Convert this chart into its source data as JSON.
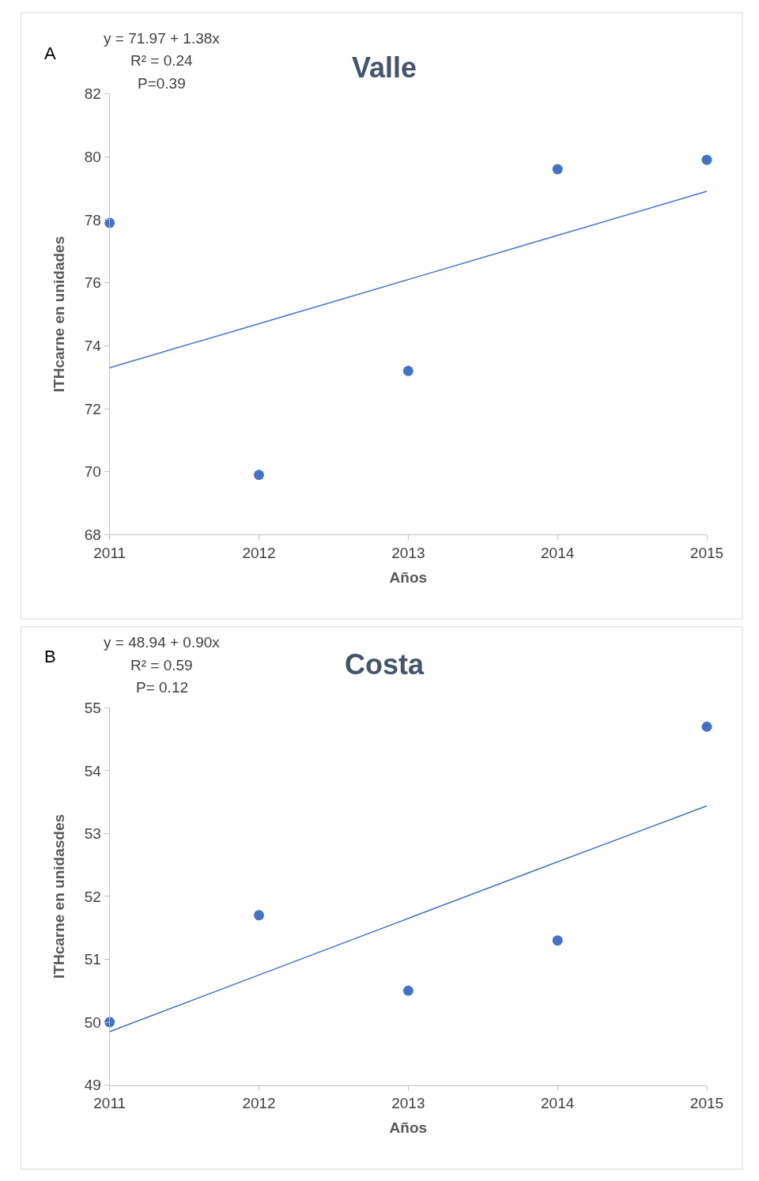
{
  "chart_data": [
    {
      "type": "scatter",
      "title": "Valle",
      "xlabel": "Años",
      "ylabel": "ITHcarne en unidades",
      "annotations": [
        "A",
        "y = 71.97 + 1.38x",
        "R² = 0.24",
        "P=0.39"
      ],
      "x": [
        2011,
        2012,
        2013,
        2014,
        2015
      ],
      "series": [
        {
          "color": "#4472c4",
          "marker": "circle",
          "values": [
            77.9,
            69.9,
            73.2,
            79.6,
            79.9
          ]
        },
        {
          "type": "line",
          "color": "#4472c4",
          "marker": "none",
          "values": [
            73.3,
            74.7,
            76.1,
            77.5,
            78.9
          ]
        }
      ],
      "xlim": [
        2011,
        2015
      ],
      "xticks": [
        2011,
        2012,
        2013,
        2014,
        2015
      ],
      "ylim": [
        68,
        82
      ],
      "yticks": [
        68,
        70,
        72,
        74,
        76,
        78,
        80,
        82
      ]
    },
    {
      "type": "scatter",
      "title": "Costa",
      "xlabel": "Años",
      "ylabel": "ITHcarne en unidasdes",
      "annotations": [
        "B",
        "y = 48.94 + 0.90x",
        "R² = 0.59",
        "P= 0.12"
      ],
      "x": [
        2011,
        2012,
        2013,
        2014,
        2015
      ],
      "series": [
        {
          "color": "#4472c4",
          "marker": "circle",
          "values": [
            50.0,
            51.7,
            50.5,
            51.3,
            54.7
          ]
        },
        {
          "type": "line",
          "color": "#4472c4",
          "marker": "none",
          "values": [
            49.85,
            50.75,
            51.65,
            52.55,
            53.44
          ]
        }
      ],
      "xlim": [
        2011,
        2015
      ],
      "xticks": [
        2011,
        2012,
        2013,
        2014,
        2015
      ],
      "ylim": [
        49,
        55
      ],
      "yticks": [
        49,
        50,
        51,
        52,
        53,
        54,
        55
      ]
    }
  ]
}
